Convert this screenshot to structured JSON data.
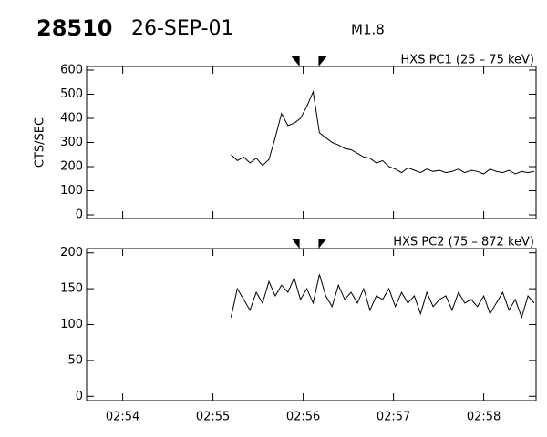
{
  "header": {
    "id": "28510",
    "date": "26-SEP-01",
    "class": "M1.8"
  },
  "chart_data": [
    {
      "type": "line",
      "title": "HXS PC1 (25 – 75 keV)",
      "ylabel": "CTS/SEC",
      "color": "#000000",
      "x": [
        55.2,
        55.27,
        55.34,
        55.41,
        55.48,
        55.55,
        55.62,
        55.69,
        55.76,
        55.83,
        55.9,
        55.97,
        56.04,
        56.11,
        56.18,
        56.25,
        56.32,
        56.39,
        56.46,
        56.53,
        56.6,
        56.67,
        56.74,
        56.81,
        56.88,
        56.95,
        57.02,
        57.09,
        57.16,
        57.23,
        57.3,
        57.37,
        57.44,
        57.51,
        57.58,
        57.65,
        57.72,
        57.79,
        57.86,
        57.93,
        58.0,
        58.07,
        58.14,
        58.21,
        58.28,
        58.35,
        58.42,
        58.49,
        58.56
      ],
      "values": [
        250,
        225,
        240,
        215,
        235,
        205,
        230,
        320,
        420,
        370,
        380,
        400,
        450,
        510,
        340,
        320,
        300,
        290,
        275,
        270,
        255,
        240,
        235,
        215,
        225,
        200,
        190,
        175,
        195,
        185,
        175,
        190,
        180,
        185,
        175,
        180,
        190,
        175,
        185,
        180,
        170,
        190,
        180,
        175,
        185,
        170,
        180,
        175,
        180
      ],
      "xlim": [
        53.6,
        58.58
      ],
      "xticks": [
        54,
        55,
        56,
        57,
        58
      ],
      "ylim": [
        -15,
        615
      ],
      "yticks": [
        0,
        100,
        200,
        300,
        400,
        500,
        600
      ],
      "markers": [
        55.96,
        56.17
      ]
    },
    {
      "type": "line",
      "title": "HXS PC2 (75 – 872 keV)",
      "color": "#000000",
      "x": [
        55.2,
        55.27,
        55.34,
        55.41,
        55.48,
        55.55,
        55.62,
        55.69,
        55.76,
        55.83,
        55.9,
        55.97,
        56.04,
        56.11,
        56.18,
        56.25,
        56.32,
        56.39,
        56.46,
        56.53,
        56.6,
        56.67,
        56.74,
        56.81,
        56.88,
        56.95,
        57.02,
        57.09,
        57.16,
        57.23,
        57.3,
        57.37,
        57.44,
        57.51,
        57.58,
        57.65,
        57.72,
        57.79,
        57.86,
        57.93,
        58.0,
        58.07,
        58.14,
        58.21,
        58.28,
        58.35,
        58.42,
        58.49,
        58.56
      ],
      "values": [
        110,
        150,
        135,
        120,
        145,
        130,
        160,
        140,
        155,
        145,
        165,
        135,
        150,
        130,
        170,
        140,
        125,
        155,
        135,
        145,
        130,
        150,
        120,
        140,
        135,
        150,
        125,
        145,
        130,
        140,
        115,
        145,
        125,
        135,
        140,
        120,
        145,
        130,
        135,
        125,
        140,
        115,
        130,
        145,
        120,
        135,
        110,
        140,
        130
      ],
      "xlim": [
        53.6,
        58.58
      ],
      "xticks": [
        {
          "value": 54,
          "label": "02:54"
        },
        {
          "value": 55,
          "label": "02:55"
        },
        {
          "value": 56,
          "label": "02:56"
        },
        {
          "value": 57,
          "label": "02:57"
        },
        {
          "value": 58,
          "label": "02:58"
        }
      ],
      "ylim": [
        -6,
        206
      ],
      "yticks": [
        0,
        50,
        100,
        150,
        200
      ],
      "markers": [
        55.96,
        56.17
      ]
    }
  ]
}
